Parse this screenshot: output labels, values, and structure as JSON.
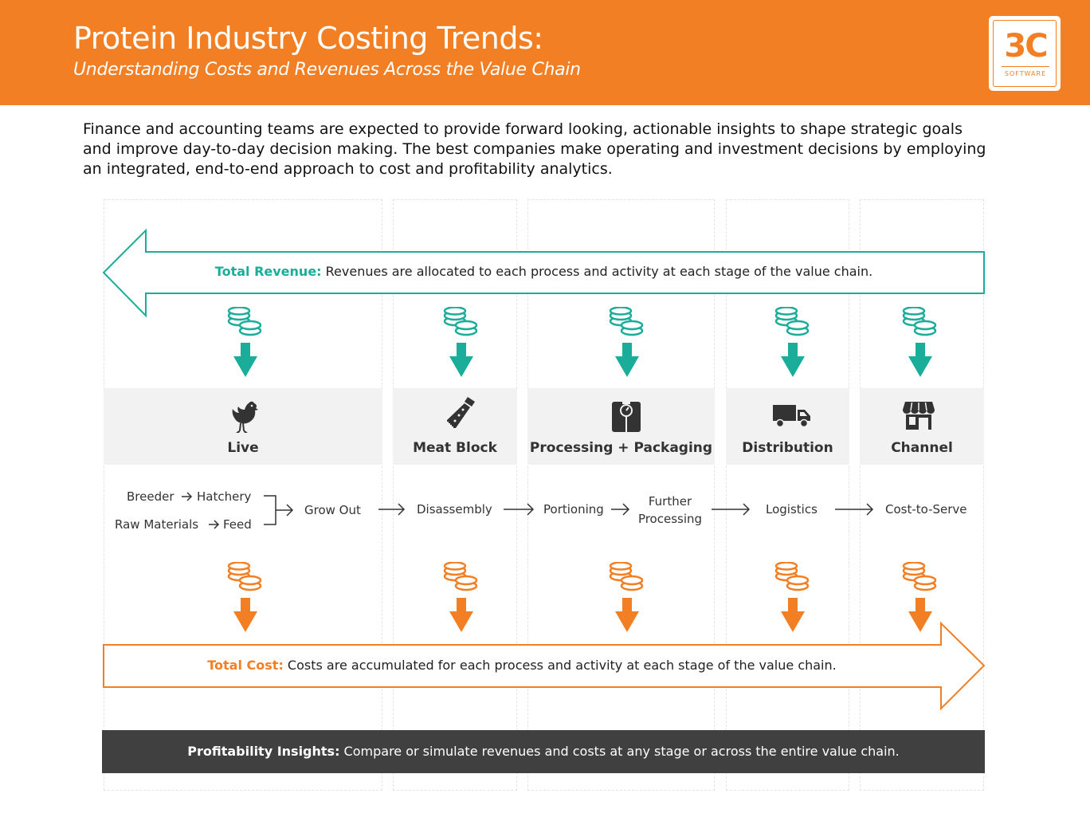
{
  "header": {
    "title": "Protein Industry Costing Trends:",
    "subtitle": "Understanding Costs and Revenues Across the Value Chain",
    "logo_main": "3C",
    "logo_sub": "SOFTWARE"
  },
  "intro": "Finance and accounting teams are expected to provide forward looking, actionable insights to shape strategic goals and improve day-to-day decision making.  The best companies make operating and investment decisions by employing an integrated, end-to-end approach to cost and profitability analytics.",
  "revenue": {
    "label": "Total Revenue:",
    "text": " Revenues are allocated to each process and activity at each stage of the value chain.",
    "color": "#1aae9a"
  },
  "cost": {
    "label": "Total Cost:",
    "text": " Costs are accumulated for each process and activity at each stage of the value chain.",
    "color": "#f37f24"
  },
  "stages": [
    {
      "label": "Live",
      "icon": "chicken-icon"
    },
    {
      "label": "Meat Block",
      "icon": "saw-icon"
    },
    {
      "label": "Processing + Packaging",
      "icon": "scale-icon"
    },
    {
      "label": "Distribution",
      "icon": "truck-icon"
    },
    {
      "label": "Channel",
      "icon": "storefront-icon"
    }
  ],
  "processes": {
    "breeder": "Breeder",
    "hatchery": "Hatchery",
    "raw_materials": "Raw Materials",
    "feed": "Feed",
    "grow_out": "Grow Out",
    "disassembly": "Disassembly",
    "portioning": "Portioning",
    "further_1": "Further",
    "further_2": "Processing",
    "logistics": "Logistics",
    "cost_to_serve": "Cost-to-Serve"
  },
  "insights": {
    "label": "Profitability Insights:",
    "text": " Compare or simulate revenues and costs at any stage or across the entire value chain."
  }
}
